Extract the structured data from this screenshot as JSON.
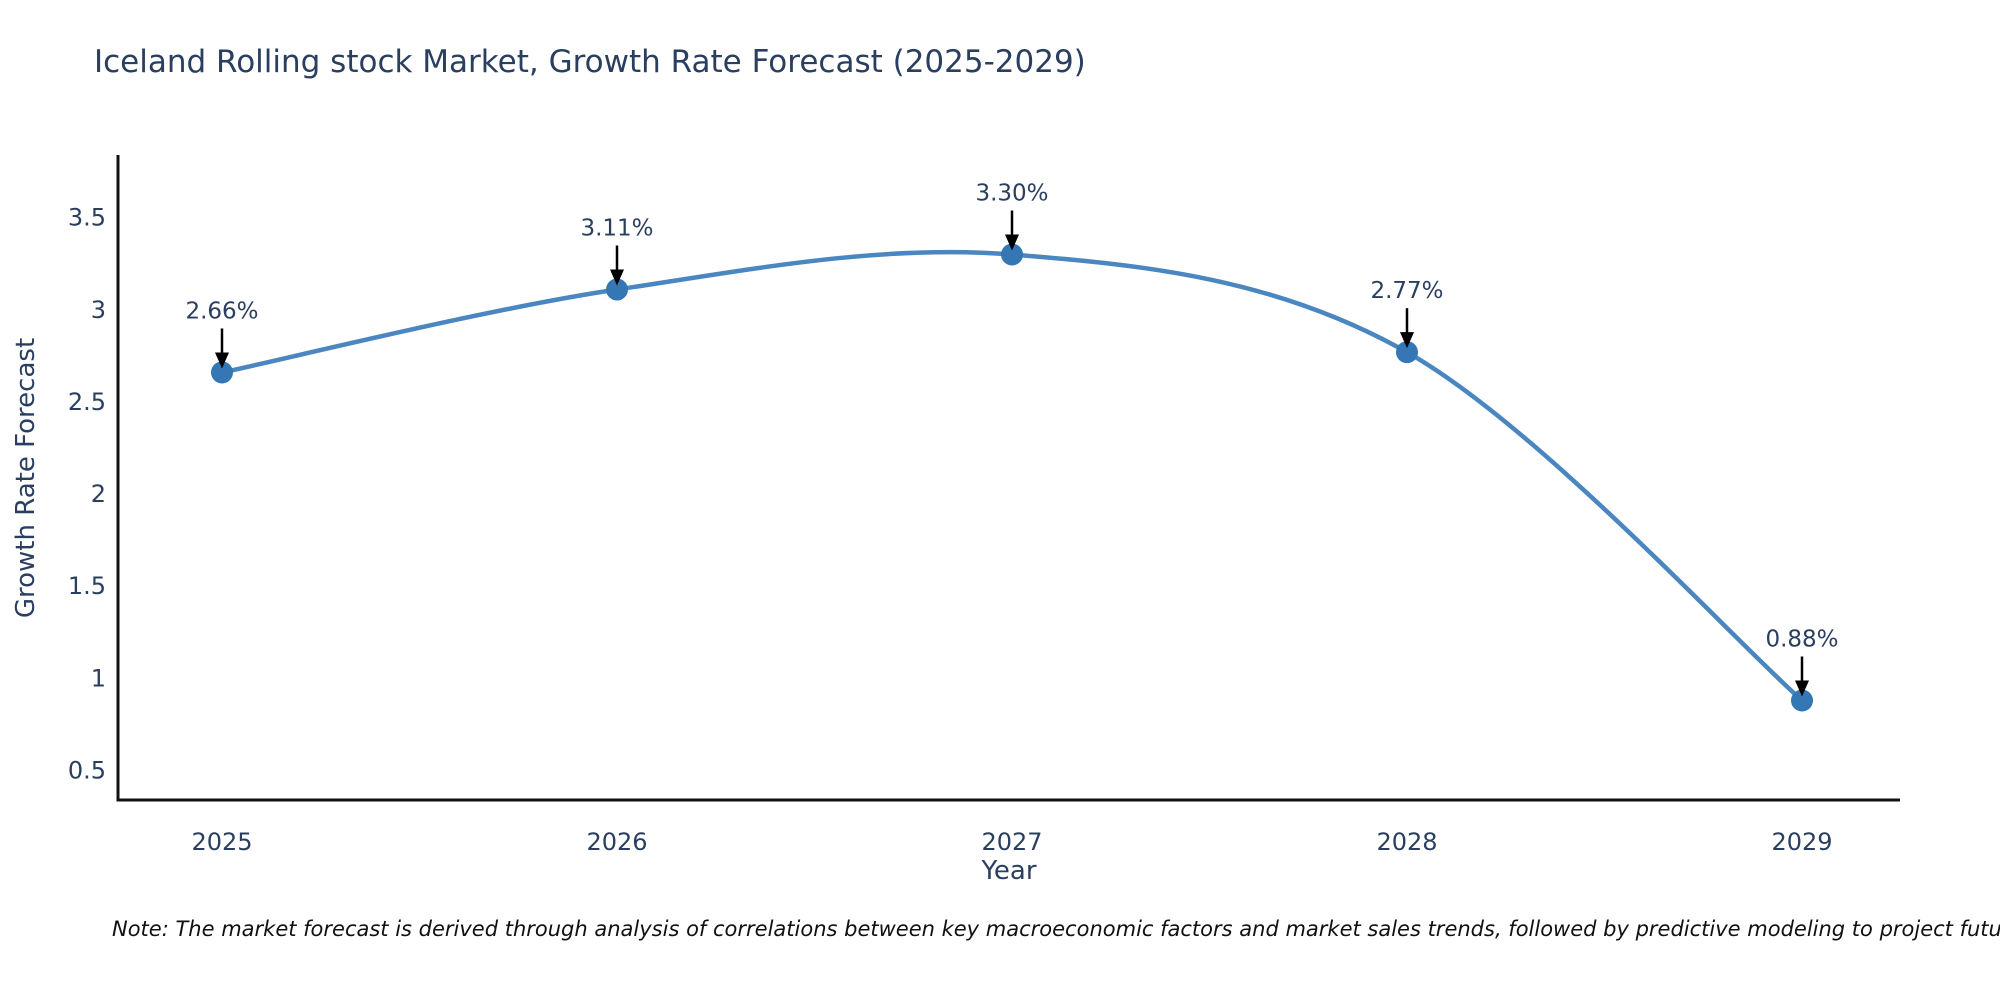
{
  "note": "Note: The market forecast is derived through analysis of correlations between key macroeconomic factors and market sales trends, followed by predictive modeling to project future sales",
  "chart_data": {
    "type": "line",
    "title": "Iceland Rolling stock Market, Growth Rate Forecast (2025-2029)",
    "xlabel": "Year",
    "ylabel": "Growth Rate Forecast",
    "x": [
      2025,
      2026,
      2027,
      2028,
      2029
    ],
    "values": [
      2.66,
      3.11,
      3.3,
      2.77,
      0.88
    ],
    "point_labels": [
      "2.66%",
      "3.11%",
      "3.30%",
      "2.77%",
      "0.88%"
    ],
    "yticks": [
      0.5,
      1,
      1.5,
      2,
      2.5,
      3,
      3.5
    ],
    "ylim": [
      0.34,
      3.84
    ],
    "line_shape": "spline",
    "grid": false,
    "legend": "none",
    "colors": {
      "line": "#4a86bf",
      "marker": "#3577b4",
      "arrow": "#000000",
      "text": "#2a3f5f",
      "axis": "#111111",
      "background": "#ffffff"
    }
  }
}
